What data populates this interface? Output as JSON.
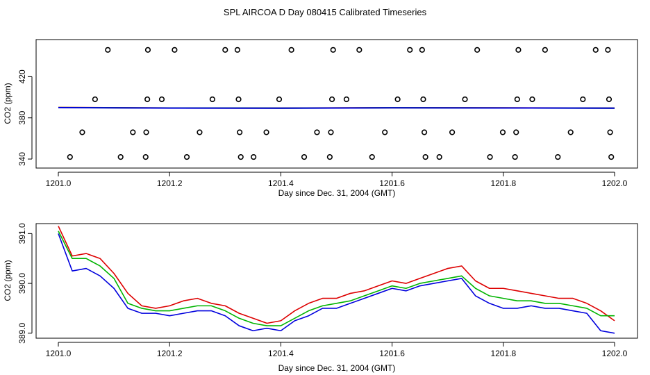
{
  "figure_title": "SPL AIRCOA D  Day 080415  Calibrated Timeseries",
  "series_colors": {
    "red": "#dd0000",
    "green": "#00b400",
    "blue": "#0000dd",
    "axis": "#000000"
  },
  "chart_data": [
    {
      "type": "scatter",
      "title": "SPL AIRCOA D  Day 080415  Calibrated Timeseries",
      "xlabel": "Day since Dec. 31, 2004 (GMT)",
      "ylabel": "CO2 (ppm)",
      "xlim": [
        1201.0,
        1202.0
      ],
      "ylim": [
        338,
        456
      ],
      "xticks": [
        1201.0,
        1201.2,
        1201.4,
        1201.6,
        1201.8,
        1202.0
      ],
      "xtick_labels": [
        "1201.0",
        "1201.2",
        "1201.4",
        "1201.6",
        "1201.8",
        "1202.0"
      ],
      "yticks": [
        340,
        380,
        420
      ],
      "ytick_labels": [
        "340",
        "380",
        "420"
      ],
      "calibration_points": [
        {
          "x": 1201.021,
          "y": 342
        },
        {
          "x": 1201.043,
          "y": 366
        },
        {
          "x": 1201.066,
          "y": 398
        },
        {
          "x": 1201.089,
          "y": 446
        },
        {
          "x": 1201.112,
          "y": 342
        },
        {
          "x": 1201.134,
          "y": 366
        },
        {
          "x": 1201.157,
          "y": 342
        },
        {
          "x": 1201.158,
          "y": 366
        },
        {
          "x": 1201.16,
          "y": 398
        },
        {
          "x": 1201.161,
          "y": 446
        },
        {
          "x": 1201.186,
          "y": 398
        },
        {
          "x": 1201.209,
          "y": 446
        },
        {
          "x": 1201.231,
          "y": 342
        },
        {
          "x": 1201.254,
          "y": 366
        },
        {
          "x": 1201.277,
          "y": 398
        },
        {
          "x": 1201.3,
          "y": 446
        },
        {
          "x": 1201.322,
          "y": 446
        },
        {
          "x": 1201.324,
          "y": 398
        },
        {
          "x": 1201.326,
          "y": 366
        },
        {
          "x": 1201.328,
          "y": 342
        },
        {
          "x": 1201.351,
          "y": 342
        },
        {
          "x": 1201.374,
          "y": 366
        },
        {
          "x": 1201.397,
          "y": 398
        },
        {
          "x": 1201.419,
          "y": 446
        },
        {
          "x": 1201.442,
          "y": 342
        },
        {
          "x": 1201.465,
          "y": 366
        },
        {
          "x": 1201.488,
          "y": 342
        },
        {
          "x": 1201.49,
          "y": 366
        },
        {
          "x": 1201.492,
          "y": 398
        },
        {
          "x": 1201.494,
          "y": 446
        },
        {
          "x": 1201.518,
          "y": 398
        },
        {
          "x": 1201.541,
          "y": 446
        },
        {
          "x": 1201.564,
          "y": 342
        },
        {
          "x": 1201.587,
          "y": 366
        },
        {
          "x": 1201.61,
          "y": 398
        },
        {
          "x": 1201.632,
          "y": 446
        },
        {
          "x": 1201.654,
          "y": 446
        },
        {
          "x": 1201.656,
          "y": 398
        },
        {
          "x": 1201.658,
          "y": 366
        },
        {
          "x": 1201.66,
          "y": 342
        },
        {
          "x": 1201.685,
          "y": 342
        },
        {
          "x": 1201.708,
          "y": 366
        },
        {
          "x": 1201.731,
          "y": 398
        },
        {
          "x": 1201.753,
          "y": 446
        },
        {
          "x": 1201.776,
          "y": 342
        },
        {
          "x": 1201.799,
          "y": 366
        },
        {
          "x": 1201.821,
          "y": 342
        },
        {
          "x": 1201.823,
          "y": 366
        },
        {
          "x": 1201.825,
          "y": 398
        },
        {
          "x": 1201.827,
          "y": 446
        },
        {
          "x": 1201.852,
          "y": 398
        },
        {
          "x": 1201.875,
          "y": 446
        },
        {
          "x": 1201.898,
          "y": 342
        },
        {
          "x": 1201.921,
          "y": 366
        },
        {
          "x": 1201.943,
          "y": 398
        },
        {
          "x": 1201.966,
          "y": 446
        },
        {
          "x": 1201.988,
          "y": 446
        },
        {
          "x": 1201.99,
          "y": 398
        },
        {
          "x": 1201.992,
          "y": 366
        },
        {
          "x": 1201.994,
          "y": 342
        }
      ],
      "baseline_series": [
        {
          "name": "red",
          "color": "#dd0000",
          "x": [
            1201.0,
            1201.2,
            1201.4,
            1201.6,
            1201.8,
            1202.0
          ],
          "values": [
            390.3,
            389.5,
            389.3,
            389.9,
            389.7,
            389.3
          ]
        },
        {
          "name": "green",
          "color": "#00b400",
          "x": [
            1201.0,
            1201.2,
            1201.4,
            1201.6,
            1201.8,
            1202.0
          ],
          "values": [
            390.2,
            389.4,
            389.2,
            389.8,
            389.6,
            389.2
          ]
        },
        {
          "name": "blue",
          "color": "#0000dd",
          "x": [
            1201.0,
            1201.2,
            1201.4,
            1201.6,
            1201.8,
            1202.0
          ],
          "values": [
            390.0,
            389.3,
            389.1,
            389.7,
            389.5,
            389.1
          ]
        }
      ]
    },
    {
      "type": "line",
      "title": "",
      "xlabel": "Day since Dec. 31, 2004 (GMT)",
      "ylabel": "CO2 (ppm)",
      "xlim": [
        1201.0,
        1202.0
      ],
      "ylim": [
        388.9,
        391.2
      ],
      "xticks": [
        1201.0,
        1201.2,
        1201.4,
        1201.6,
        1201.8,
        1202.0
      ],
      "xtick_labels": [
        "1201.0",
        "1201.2",
        "1201.4",
        "1201.6",
        "1201.8",
        "1202.0"
      ],
      "yticks": [
        389.0,
        390.0,
        391.0
      ],
      "ytick_labels": [
        "389.0",
        "390.0",
        "391.0"
      ],
      "x": [
        1201.0,
        1201.025,
        1201.05,
        1201.075,
        1201.1,
        1201.125,
        1201.15,
        1201.175,
        1201.2,
        1201.225,
        1201.25,
        1201.275,
        1201.3,
        1201.325,
        1201.35,
        1201.375,
        1201.4,
        1201.425,
        1201.45,
        1201.475,
        1201.5,
        1201.525,
        1201.55,
        1201.575,
        1201.6,
        1201.625,
        1201.65,
        1201.675,
        1201.7,
        1201.725,
        1201.75,
        1201.775,
        1201.8,
        1201.825,
        1201.85,
        1201.875,
        1201.9,
        1201.925,
        1201.95,
        1201.975,
        1202.0
      ],
      "series": [
        {
          "name": "red",
          "color": "#dd0000",
          "values": [
            391.15,
            390.55,
            390.6,
            390.5,
            390.2,
            389.8,
            389.55,
            389.5,
            389.55,
            389.65,
            389.7,
            389.6,
            389.55,
            389.4,
            389.3,
            389.2,
            389.25,
            389.45,
            389.6,
            389.7,
            389.7,
            389.8,
            389.85,
            389.95,
            390.05,
            390.0,
            390.1,
            390.2,
            390.3,
            390.35,
            390.05,
            389.9,
            389.9,
            389.85,
            389.8,
            389.75,
            389.7,
            389.7,
            389.6,
            389.45,
            389.25
          ]
        },
        {
          "name": "green",
          "color": "#00b400",
          "values": [
            391.05,
            390.5,
            390.5,
            390.35,
            390.1,
            389.6,
            389.5,
            389.45,
            389.45,
            389.5,
            389.55,
            389.55,
            389.45,
            389.3,
            389.2,
            389.15,
            389.15,
            389.3,
            389.45,
            389.55,
            389.6,
            389.65,
            389.75,
            389.85,
            389.95,
            389.9,
            390.0,
            390.05,
            390.1,
            390.15,
            389.9,
            389.75,
            389.7,
            389.65,
            389.65,
            389.6,
            389.6,
            389.55,
            389.5,
            389.35,
            389.35
          ]
        },
        {
          "name": "blue",
          "color": "#0000dd",
          "values": [
            391.0,
            390.25,
            390.3,
            390.15,
            389.9,
            389.5,
            389.4,
            389.4,
            389.35,
            389.4,
            389.45,
            389.45,
            389.35,
            389.15,
            389.05,
            389.1,
            389.05,
            389.25,
            389.35,
            389.5,
            389.5,
            389.6,
            389.7,
            389.8,
            389.9,
            389.85,
            389.95,
            390.0,
            390.05,
            390.1,
            389.75,
            389.6,
            389.5,
            389.5,
            389.55,
            389.5,
            389.5,
            389.45,
            389.4,
            389.05,
            389.0
          ]
        }
      ]
    }
  ]
}
